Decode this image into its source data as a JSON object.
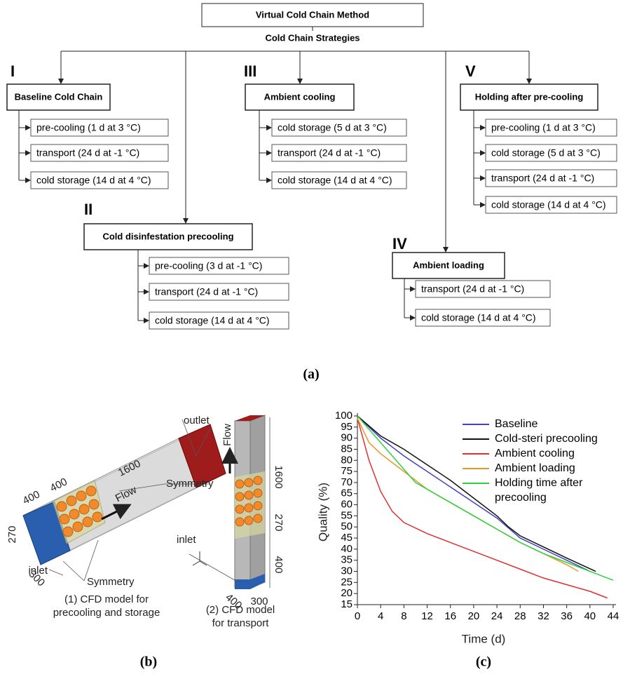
{
  "diagram": {
    "title": "Virtual Cold Chain Method",
    "subtitle": "Cold Chain Strategies",
    "caption": "(a)",
    "strategies": [
      {
        "numeral": "I",
        "name": "Baseline Cold Chain",
        "steps": [
          "pre-cooling (1 d at 3 °C)",
          "transport (24 d at -1 °C)",
          "cold storage (14 d at 4 °C)"
        ]
      },
      {
        "numeral": "II",
        "name": "Cold disinfestation precooling",
        "steps": [
          "pre-cooling (3 d at -1 °C)",
          "transport (24 d at -1 °C)",
          "cold storage (14 d at 4 °C)"
        ]
      },
      {
        "numeral": "III",
        "name": "Ambient cooling",
        "steps": [
          "cold storage (5 d at 3 °C)",
          "transport (24 d at -1 °C)",
          "cold storage (14 d at 4 °C)"
        ]
      },
      {
        "numeral": "IV",
        "name": "Ambient loading",
        "steps": [
          "transport (24 d at -1 °C)",
          "cold storage (14 d at 4 °C)"
        ]
      },
      {
        "numeral": "V",
        "name": "Holding after pre-cooling",
        "steps": [
          "pre-cooling (1 d at 3 °C)",
          "cold storage (5 d at 3 °C)",
          "transport (24 d at -1 °C)",
          "cold storage (14 d at 4 °C)"
        ]
      }
    ]
  },
  "cfd": {
    "caption": "(b)",
    "model1": {
      "caption": [
        "(1) CFD model for",
        "precooling and storage"
      ],
      "outlet": "outlet",
      "length": "1600",
      "width1": "400",
      "width2": "400",
      "height": "270",
      "depth": "300",
      "flow": "Flow",
      "symmetry1": "Symmetry",
      "symmetry2": "Symmetry",
      "inlet": "inlet"
    },
    "model2": {
      "caption": [
        "(2) CFD model",
        "for transport"
      ],
      "flow": "Flow",
      "length": "1600",
      "height": "270",
      "lower": "400",
      "inlet": "inlet",
      "width": "400",
      "depth": "300"
    }
  },
  "chart_data": {
    "type": "line",
    "caption": "(c)",
    "xlabel": "Time (d)",
    "ylabel": "Quality (%)",
    "xlim": [
      0,
      44
    ],
    "xticks": [
      0,
      4,
      8,
      12,
      16,
      20,
      24,
      28,
      32,
      36,
      40,
      44
    ],
    "ylim": [
      15,
      100
    ],
    "yticks": [
      15,
      20,
      25,
      30,
      35,
      40,
      45,
      50,
      55,
      60,
      65,
      70,
      75,
      80,
      85,
      90,
      95,
      100
    ],
    "series": [
      {
        "name": "Baseline",
        "color": "#4040c8",
        "x": [
          0,
          2,
          4,
          6,
          8,
          12,
          16,
          20,
          24,
          28,
          32,
          36,
          40
        ],
        "values": [
          100,
          95,
          90,
          86,
          82,
          75,
          68,
          61,
          54,
          45,
          40,
          35,
          30
        ]
      },
      {
        "name": "Cold-steri precooling",
        "color": "#111111",
        "x": [
          0,
          4,
          8,
          12,
          16,
          20,
          24,
          26,
          28,
          32,
          36,
          41
        ],
        "values": [
          100,
          91,
          85,
          78,
          71,
          63,
          55,
          50,
          46,
          41,
          36,
          30
        ]
      },
      {
        "name": "Ambient cooling",
        "color": "#e03030",
        "x": [
          0,
          2,
          4,
          6,
          8,
          12,
          16,
          20,
          24,
          28,
          32,
          36,
          40,
          43
        ],
        "values": [
          99,
          80,
          66,
          57,
          52,
          47,
          43,
          39,
          35,
          31,
          27,
          24,
          21,
          18
        ]
      },
      {
        "name": "Ambient loading",
        "color": "#e8962a",
        "x": [
          0,
          2,
          4,
          8,
          12,
          16,
          20,
          24,
          28,
          32,
          36,
          38
        ],
        "values": [
          99,
          88,
          83,
          75,
          67,
          61,
          55,
          49,
          43,
          38,
          33,
          30
        ]
      },
      {
        "name": "Holding time after precooling",
        "color": "#30d040",
        "x": [
          0,
          2,
          4,
          6,
          8,
          10,
          12,
          16,
          20,
          24,
          28,
          32,
          36,
          40,
          44
        ],
        "values": [
          100,
          94,
          88,
          82,
          76,
          70,
          67,
          61,
          55,
          49,
          43,
          38,
          34,
          30,
          26
        ]
      }
    ]
  }
}
